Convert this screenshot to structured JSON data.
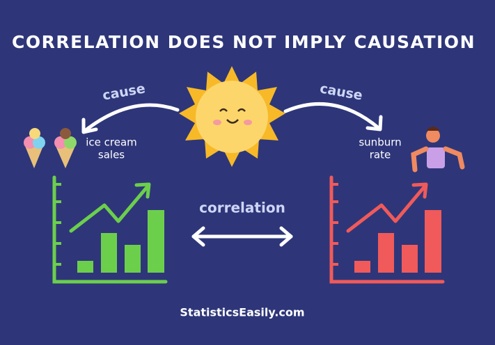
{
  "header": {
    "title": "CORRELATION DOES NOT IMPLY CAUSATION"
  },
  "arrows": {
    "left": {
      "label": "cause"
    },
    "right": {
      "label": "cause"
    },
    "middle": {
      "label": "correlation"
    }
  },
  "nodes": [
    {
      "lines": [
        "ice cream",
        "sales"
      ]
    },
    {
      "lines": [
        "sunburn",
        "rate"
      ]
    }
  ],
  "footer": {
    "text": "StatisticsEasily.com"
  }
}
